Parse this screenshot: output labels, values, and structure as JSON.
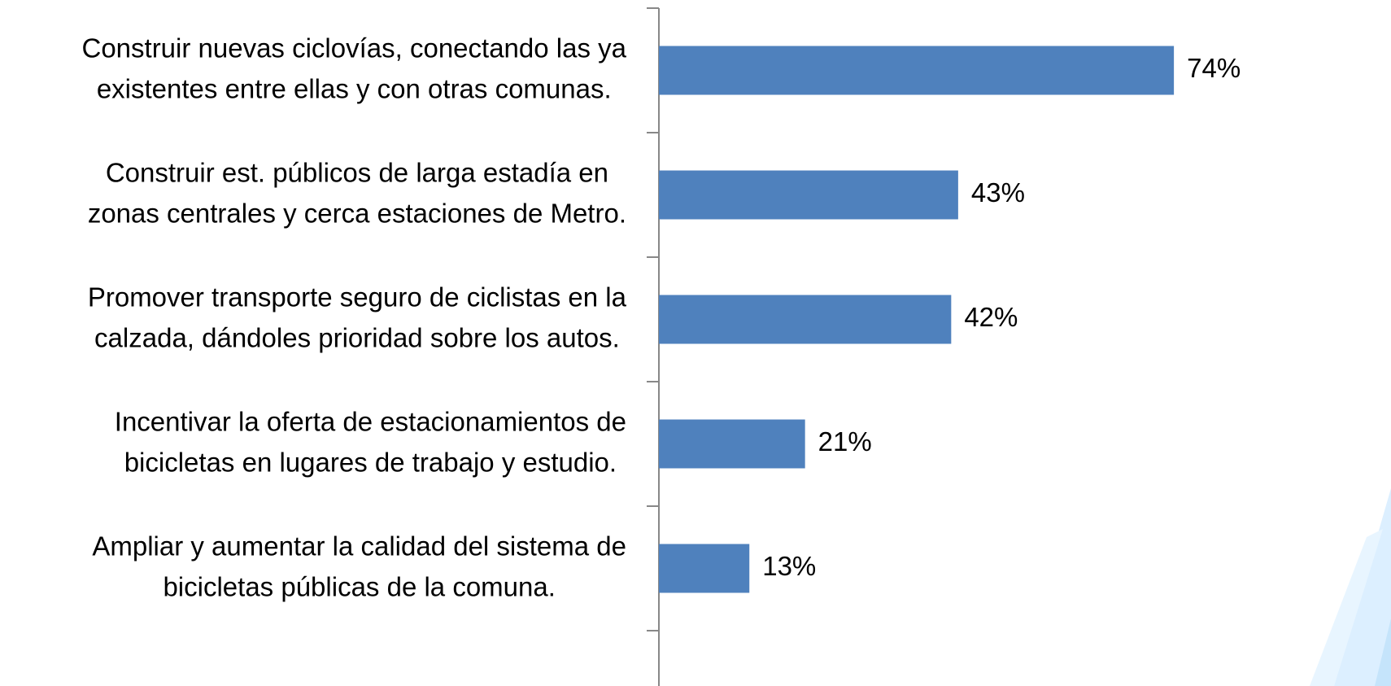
{
  "chart_data": {
    "type": "hbar",
    "categories": [
      "Construir nuevas ciclovías, conectando las ya\nexistentes entre ellas y con otras comunas.",
      "Construir est. públicos de larga estadía en\nzonas centrales y cerca estaciones de Metro.",
      "Promover transporte seguro de ciclistas en la\ncalzada, dándoles prioridad sobre los autos.",
      "Incentivar la oferta de estacionamientos de\nbicicletas en lugares de trabajo y estudio.",
      "Ampliar y aumentar la calidad del sistema de\nbicicletas públicas de la comuna."
    ],
    "values": [
      74,
      43,
      42,
      21,
      13
    ],
    "value_labels": [
      "74%",
      "43%",
      "42%",
      "21%",
      "13%"
    ],
    "color": "#4f81bd",
    "xlim": [
      0,
      90
    ]
  }
}
